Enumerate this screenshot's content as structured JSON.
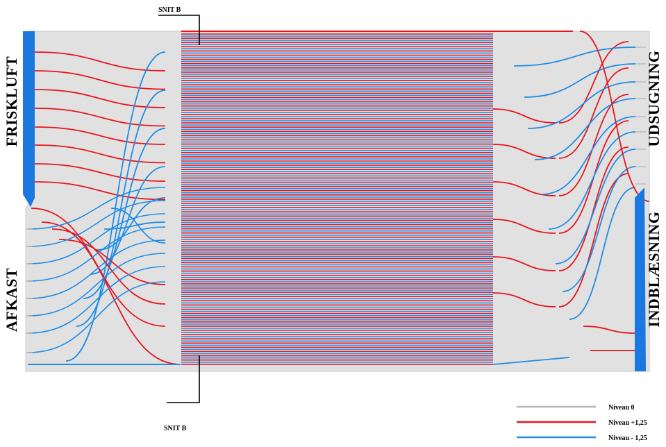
{
  "sections": {
    "top": "SNIT B",
    "bottom": "SNIT B"
  },
  "zones": {
    "fresh_air": "FRISKLUFT",
    "exhaust": "AFKAST",
    "extraction": "UDSUGNING",
    "supply": "INDBLÆSNING"
  },
  "legend": [
    {
      "label": "Niveau 0",
      "color": "#b4b4b4"
    },
    {
      "label": "Niveau +1,25",
      "color": "#e8141c"
    },
    {
      "label": "Niveau - 1,25",
      "color": "#1e8ce8"
    }
  ],
  "colors": {
    "panel": "#e1e1e1",
    "red": "#e8141c",
    "blue": "#1e8ce8",
    "gray": "#b4b4b4",
    "duct": "#1a78e0"
  }
}
